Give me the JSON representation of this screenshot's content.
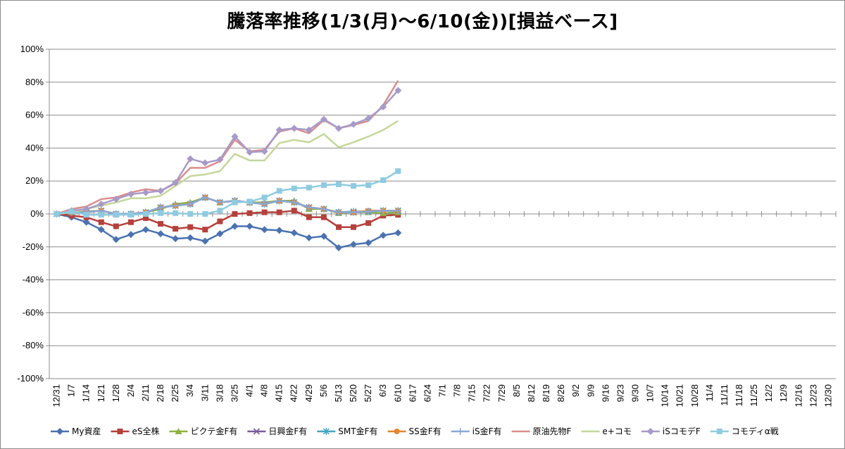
{
  "chart_data": {
    "type": "line",
    "title": "騰落率推移(1/3(月)～6/10(金))[損益ベース]",
    "xlabel": "",
    "ylabel": "",
    "ylim": [
      -100,
      100
    ],
    "y_ticks": [
      "100%",
      "80%",
      "60%",
      "40%",
      "20%",
      "0%",
      "-20%",
      "-40%",
      "-60%",
      "-80%",
      "-100%"
    ],
    "x_labels": [
      "12/31",
      "1/7",
      "1/14",
      "1/21",
      "1/28",
      "2/4",
      "2/11",
      "2/18",
      "2/25",
      "3/4",
      "3/11",
      "3/18",
      "3/25",
      "4/1",
      "4/8",
      "4/15",
      "4/22",
      "4/29",
      "5/6",
      "5/13",
      "5/20",
      "5/27",
      "6/3",
      "6/10",
      "6/17",
      "6/24",
      "7/1",
      "7/8",
      "7/15",
      "7/22",
      "7/29",
      "8/5",
      "8/12",
      "8/19",
      "8/26",
      "9/2",
      "9/9",
      "9/16",
      "9/23",
      "9/30",
      "10/7",
      "10/14",
      "10/21",
      "10/28",
      "11/4",
      "11/11",
      "11/18",
      "11/25",
      "12/2",
      "12/9",
      "12/16",
      "12/23",
      "12/30"
    ],
    "gridlines": "horizontal",
    "legend_position": "bottom",
    "series": [
      {
        "name": "My資産",
        "color": "#4a72b0",
        "marker": "diamond",
        "values": [
          0,
          -2,
          -5,
          -9.5,
          -15.5,
          -12.5,
          -9.5,
          -12,
          -15,
          -14.5,
          -16.5,
          -12,
          -7.5,
          -7.5,
          -9.5,
          -10,
          -11.5,
          -14.5,
          -13.5,
          -20.5,
          -18.5,
          -17.5,
          -13,
          -11.5
        ]
      },
      {
        "name": "eS全株",
        "color": "#b5403c",
        "marker": "square",
        "values": [
          0,
          -1,
          -2,
          -5,
          -7.5,
          -5,
          -2.5,
          -6,
          -9,
          -8,
          -9.5,
          -4.5,
          0,
          0.5,
          1,
          1,
          2,
          -2,
          -2,
          -8,
          -8,
          -5.5,
          -1,
          -0.5
        ]
      },
      {
        "name": "ピクテ金F有",
        "color": "#8eb240",
        "marker": "triangle",
        "values": [
          0,
          1,
          1.5,
          2,
          0,
          0,
          1,
          3,
          6,
          7,
          10,
          7,
          8,
          7,
          7,
          8,
          8,
          3,
          3,
          0.5,
          1,
          1,
          0.5,
          1
        ]
      },
      {
        "name": "日興金F有",
        "color": "#7a5b9e",
        "marker": "x",
        "values": [
          0,
          1,
          1,
          2,
          0,
          0,
          1,
          4,
          5,
          6,
          10,
          7,
          8,
          7,
          6,
          8,
          7,
          4,
          3,
          1,
          1,
          1.5,
          2,
          2
        ]
      },
      {
        "name": "SMT金F有",
        "color": "#46a4bd",
        "marker": "star",
        "values": [
          0,
          1,
          1,
          2,
          0,
          0,
          1,
          4,
          5,
          6,
          10,
          7,
          8,
          7,
          6,
          8,
          7,
          4,
          3,
          1,
          1.5,
          1.5,
          2,
          2
        ]
      },
      {
        "name": "SS金F有",
        "color": "#e5852e",
        "marker": "circle",
        "values": [
          0,
          1,
          1,
          2,
          0,
          0,
          1,
          4,
          5,
          6,
          10,
          7,
          8,
          7,
          6,
          8,
          7,
          4,
          3,
          1,
          1,
          2,
          2,
          2
        ]
      },
      {
        "name": "iS金F有",
        "color": "#8aa7d8",
        "marker": "plus",
        "values": [
          0,
          1,
          1,
          2,
          0,
          0,
          1,
          4,
          5,
          6,
          10,
          7,
          8,
          7,
          6,
          8,
          7,
          4,
          3,
          1,
          1,
          1.5,
          2,
          2
        ]
      },
      {
        "name": "原油先物F",
        "color": "#d98d8c",
        "marker": "none",
        "values": [
          0,
          3,
          4.5,
          9,
          10,
          13,
          15,
          14,
          18.5,
          28,
          28,
          32,
          45,
          38,
          39,
          50,
          52,
          49,
          57,
          52,
          54,
          56.5,
          66,
          81
        ]
      },
      {
        "name": "e+コモ",
        "color": "#c3d79b",
        "marker": "none",
        "values": [
          0,
          1,
          3,
          5,
          7,
          9.5,
          9.5,
          11,
          17,
          23,
          24,
          26,
          36.5,
          32.5,
          32.5,
          43,
          45,
          43.5,
          48.5,
          40.5,
          43.5,
          47,
          51,
          56.5
        ]
      },
      {
        "name": "iSコモデF",
        "color": "#a79ac9",
        "marker": "diamond",
        "values": [
          0,
          2,
          3,
          6,
          9,
          12,
          13,
          14,
          19,
          33.5,
          31,
          33,
          47,
          37.5,
          38,
          51,
          52,
          51,
          57.5,
          52,
          54.5,
          58,
          65,
          75
        ]
      },
      {
        "name": "コモディα戦",
        "color": "#8fcbe0",
        "marker": "square",
        "values": [
          0,
          1.5,
          -0.5,
          -0.5,
          -0.5,
          -0.5,
          0,
          0.5,
          0.5,
          0,
          0,
          2,
          7,
          7.5,
          10,
          14,
          15.5,
          16,
          17.5,
          18,
          17,
          17.5,
          20.5,
          26
        ]
      }
    ]
  }
}
